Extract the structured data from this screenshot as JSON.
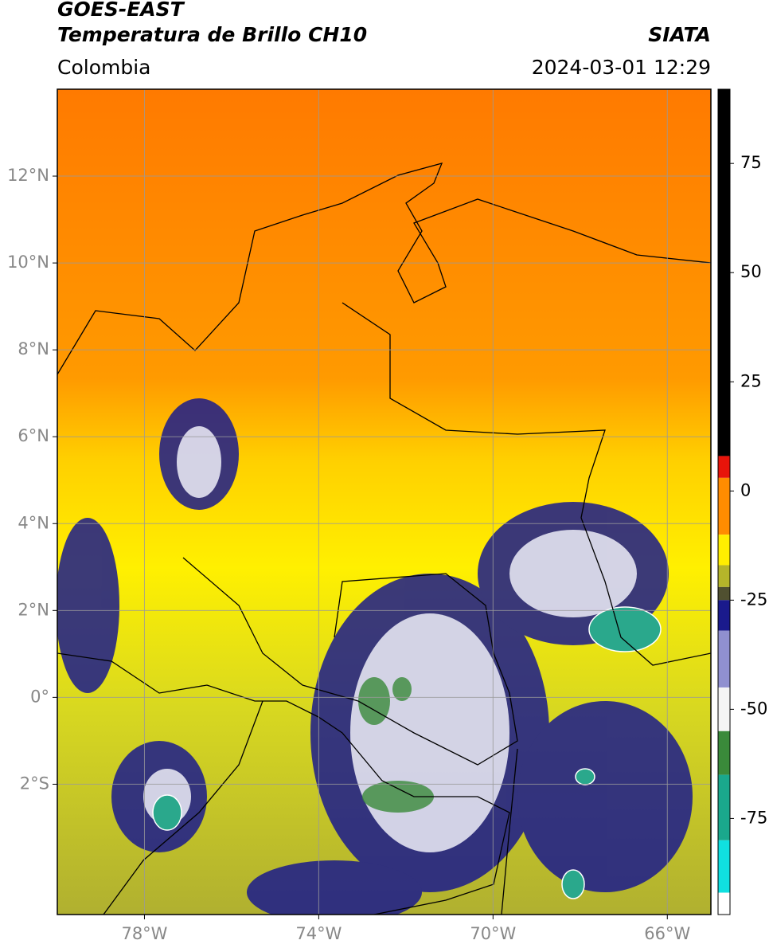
{
  "header": {
    "title": "GOES-EAST",
    "subtitle": "Temperatura de Brillo CH10",
    "source": "SIATA",
    "region": "Colombia",
    "datetime": "2024-03-01 12:29"
  },
  "map": {
    "xlim": [
      -80,
      -65
    ],
    "ylim": [
      -5,
      14
    ],
    "grid": true,
    "grid_color": "#9a9a9a",
    "xticks": [
      {
        "value": -78,
        "label": "78°W"
      },
      {
        "value": -74,
        "label": "74°W"
      },
      {
        "value": -70,
        "label": "70°W"
      },
      {
        "value": -66,
        "label": "66°W"
      }
    ],
    "yticks": [
      {
        "value": 12,
        "label": "12°N"
      },
      {
        "value": 10,
        "label": "10°N"
      },
      {
        "value": 8,
        "label": "8°N"
      },
      {
        "value": 6,
        "label": "6°N"
      },
      {
        "value": 4,
        "label": "4°N"
      },
      {
        "value": 2,
        "label": "2°N"
      },
      {
        "value": 0,
        "label": "0°"
      },
      {
        "value": -2,
        "label": "2°S"
      }
    ]
  },
  "colorbar": {
    "lim": [
      -97,
      92
    ],
    "ticks": [
      75,
      50,
      25,
      0,
      -25,
      -50,
      -75
    ],
    "segments": [
      {
        "min": 8,
        "max": 92,
        "color": "#000000"
      },
      {
        "min": 3,
        "max": 8,
        "color": "#e8140a"
      },
      {
        "min": -10,
        "max": 3,
        "color": "#ff8c00"
      },
      {
        "min": -17,
        "max": -10,
        "color": "#ffee00"
      },
      {
        "min": -22,
        "max": -17,
        "color": "#b5b52a"
      },
      {
        "min": -25,
        "max": -22,
        "color": "#505030"
      },
      {
        "min": -32,
        "max": -25,
        "color": "#1a1a8c"
      },
      {
        "min": -45,
        "max": -32,
        "color": "#9090d0"
      },
      {
        "min": -55,
        "max": -45,
        "color": "#f4f4f4"
      },
      {
        "min": -65,
        "max": -55,
        "color": "#3a8a3a"
      },
      {
        "min": -80,
        "max": -65,
        "color": "#1aa88c"
      },
      {
        "min": -92,
        "max": -80,
        "color": "#10e0e0"
      },
      {
        "min": -97,
        "max": -92,
        "color": "#ffffff"
      }
    ]
  }
}
